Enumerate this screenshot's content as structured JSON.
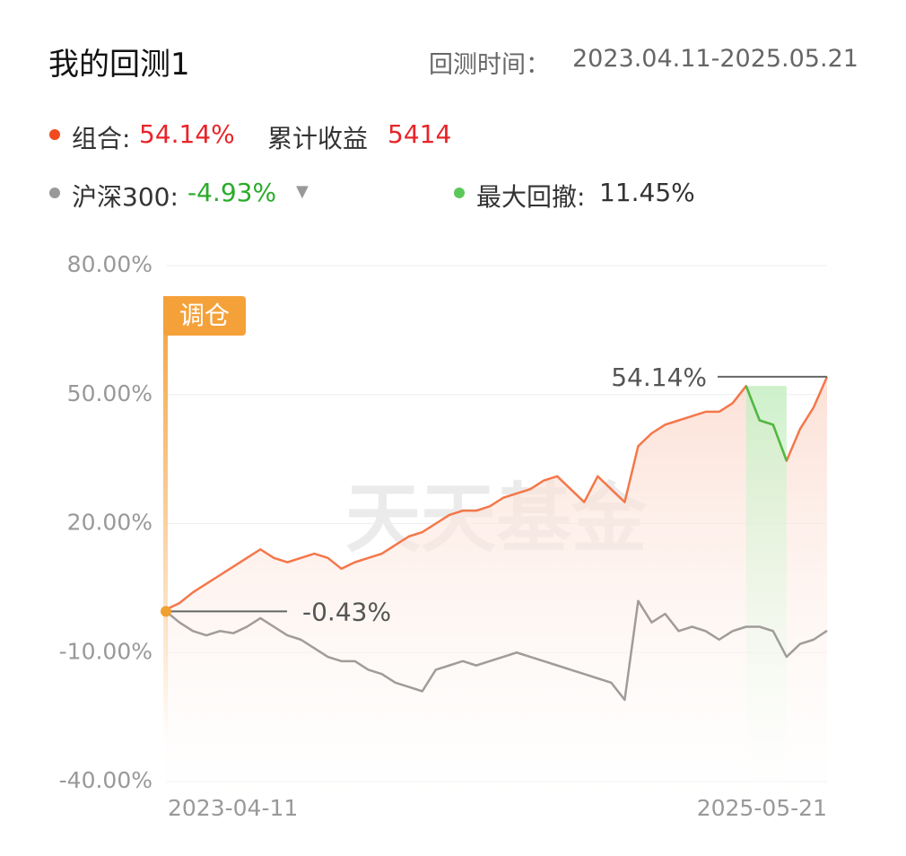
{
  "header": {
    "title": "我的回测1",
    "period_label": "回测时间：",
    "period": "2023.04.11-2025.05.21"
  },
  "summary": {
    "portfolio_label": "组合:",
    "portfolio_value": "54.14%",
    "profit_label": "累计收益",
    "profit_value": "5414",
    "index_label": "沪深300:",
    "index_value": "-4.93%",
    "drawdown_label": "最大回撤:",
    "drawdown_value": "11.45%"
  },
  "chart_data": {
    "type": "line",
    "categories": [
      "2023-04-11",
      null,
      null,
      null,
      null,
      null,
      null,
      null,
      null,
      null,
      null,
      null,
      null,
      null,
      null,
      null,
      null,
      null,
      null,
      null,
      null,
      null,
      null,
      null,
      null,
      null,
      null,
      null,
      null,
      null,
      null,
      null,
      null,
      null,
      null,
      null,
      null,
      null,
      null,
      null,
      null,
      null,
      null,
      null,
      null,
      null,
      null,
      null,
      null,
      "2025-05-21"
    ],
    "series": [
      {
        "name": "组合",
        "color": "#f4774a",
        "values": [
          0,
          1.5,
          4,
          6,
          8,
          10,
          12,
          14,
          12,
          11,
          12,
          13,
          12,
          9.5,
          11,
          12,
          13,
          15,
          17,
          18,
          20,
          22,
          23,
          23,
          24,
          26,
          27,
          28,
          30,
          31,
          28,
          25,
          31,
          28,
          25,
          38,
          41,
          43,
          44,
          45,
          46,
          46,
          48,
          52,
          44,
          43,
          34.6,
          42,
          47,
          54.14
        ]
      },
      {
        "name": "沪深300",
        "color": "#a09c98",
        "values": [
          -0.43,
          -3,
          -5,
          -6,
          -5,
          -5.5,
          -4,
          -2,
          -4,
          -6,
          -7,
          -9,
          -11,
          -12,
          -12,
          -14,
          -15,
          -17,
          -18,
          -19,
          -14,
          -13,
          -12,
          -13,
          -12,
          -11,
          -10,
          -11,
          -12,
          -13,
          -14,
          -15,
          -16,
          -17,
          -21,
          2,
          -3,
          -1,
          -5,
          -4,
          -5,
          -7,
          -5,
          -4,
          -4,
          -5,
          -11,
          -8,
          -7,
          -4.93
        ]
      },
      {
        "name": "最大回撤",
        "color": "#4cbb45",
        "values": [
          null,
          null,
          null,
          null,
          null,
          null,
          null,
          null,
          null,
          null,
          null,
          null,
          null,
          null,
          null,
          null,
          null,
          null,
          null,
          null,
          null,
          null,
          null,
          null,
          null,
          null,
          null,
          null,
          null,
          null,
          null,
          null,
          null,
          null,
          null,
          null,
          null,
          null,
          null,
          null,
          null,
          null,
          null,
          52,
          44,
          43,
          34.6,
          null,
          null,
          null
        ]
      }
    ],
    "ylim": [
      -40,
      80
    ],
    "yticks": [
      {
        "value": -40,
        "label": "-40.00%"
      },
      {
        "value": -10,
        "label": "-10.00%"
      },
      {
        "value": 20,
        "label": "20.00%"
      },
      {
        "value": 50,
        "label": "50.00%"
      },
      {
        "value": 80,
        "label": "80.00%"
      }
    ],
    "grid": true,
    "annotations": {
      "max_label": "54.14%",
      "start_label": "-0.43%",
      "rebalance": "调仓"
    },
    "watermark": "天天基金"
  }
}
